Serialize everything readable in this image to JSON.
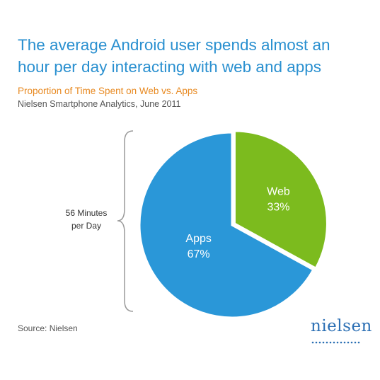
{
  "title_lines": [
    "The average Android user spends almost an",
    "hour per day interacting with web and apps"
  ],
  "subtitle": "Proportion of Time Spent on Web vs. Apps",
  "source_line": "Nielsen Smartphone Analytics, June 2011",
  "footer_source": "Source: Nielsen",
  "brace_label_lines": [
    "56 Minutes",
    "per Day"
  ],
  "logo_text": "nielsen",
  "colors": {
    "title": "#2a90d0",
    "subtitle": "#e88a22",
    "apps": "#2a97d8",
    "web": "#7cbb1e",
    "logo": "#2b6fb4"
  },
  "chart_data": {
    "type": "pie",
    "title": "Proportion of Time Spent on Web vs. Apps",
    "slices": [
      {
        "name": "Web",
        "value": 33,
        "label": "33%",
        "color": "#7cbb1e"
      },
      {
        "name": "Apps",
        "value": 67,
        "label": "67%",
        "color": "#2a97d8"
      }
    ],
    "total_annotation": "56 Minutes per Day"
  }
}
